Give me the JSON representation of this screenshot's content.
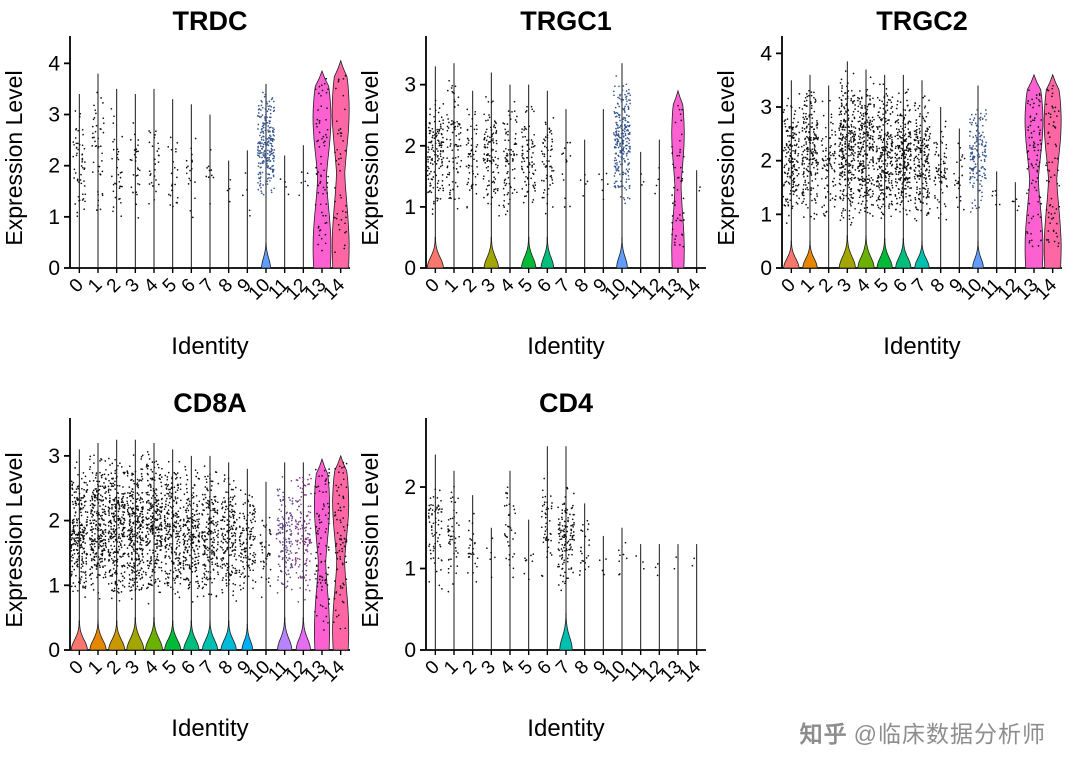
{
  "figure": {
    "categories": [
      "0",
      "1",
      "2",
      "3",
      "4",
      "5",
      "6",
      "7",
      "8",
      "9",
      "10",
      "11",
      "12",
      "13",
      "14"
    ],
    "cluster_colors": [
      "#F8766D",
      "#E58700",
      "#C99800",
      "#A3A500",
      "#6BB100",
      "#00BA38",
      "#00BF7D",
      "#00C0AF",
      "#00BCD8",
      "#00B0F6",
      "#619CFF",
      "#B983FF",
      "#E76BF3",
      "#FD61D1",
      "#FF67A4"
    ],
    "point_color": "#0e0e0e",
    "axis_color": "#000000",
    "cluster_fields": [
      "violin_shape(0=none,1=bottom_bulge,2=full_violin)",
      "violin_height_expr",
      "violin_width_frac",
      "stem_max_expr",
      "points_n",
      "points_min_expr",
      "points_max_expr",
      "tint_points(0/1)"
    ]
  },
  "watermark": {
    "logo": "知乎",
    "handle": "@临床数据分析师"
  },
  "chart_data": [
    {
      "type": "violin",
      "title": "TRDC",
      "xlabel": "Identity",
      "ylabel": "Expression Level",
      "ylim": [
        0,
        4.3
      ],
      "yticks": [
        0,
        1,
        2,
        3,
        4
      ],
      "clusters": [
        [
          0,
          0,
          0,
          3.4,
          55,
          0.8,
          3.4,
          0
        ],
        [
          0,
          0,
          0,
          3.8,
          45,
          0.8,
          3.6,
          0
        ],
        [
          0,
          0,
          0,
          3.5,
          35,
          0.9,
          3.2,
          0
        ],
        [
          0,
          0,
          0,
          3.4,
          30,
          0.9,
          3.2,
          0
        ],
        [
          0,
          0,
          0,
          3.5,
          28,
          0.9,
          3.3,
          0
        ],
        [
          0,
          0,
          0,
          3.3,
          22,
          0.9,
          3.1,
          0
        ],
        [
          0,
          0,
          0,
          3.2,
          18,
          0.9,
          3.0,
          0
        ],
        [
          0,
          0,
          0,
          3.0,
          10,
          1.0,
          2.8,
          0
        ],
        [
          0,
          0,
          0,
          2.1,
          4,
          1.2,
          2.0,
          0
        ],
        [
          0,
          0,
          0,
          2.3,
          5,
          1.0,
          2.2,
          0
        ],
        [
          1,
          0.55,
          0.5,
          3.6,
          240,
          1.2,
          3.5,
          1
        ],
        [
          0,
          0,
          0,
          2.2,
          4,
          1.1,
          2.0,
          0
        ],
        [
          0,
          0,
          0,
          2.4,
          6,
          1.0,
          2.2,
          0
        ],
        [
          2,
          3.85,
          1.0,
          3.85,
          70,
          0.3,
          3.7,
          0
        ],
        [
          2,
          4.05,
          0.95,
          4.05,
          45,
          0.3,
          3.8,
          0
        ]
      ]
    },
    {
      "type": "violin",
      "title": "TRGC1",
      "xlabel": "Identity",
      "ylabel": "Expression Level",
      "ylim": [
        0,
        3.6
      ],
      "yticks": [
        0,
        1,
        2,
        3
      ],
      "clusters": [
        [
          1,
          0.5,
          0.9,
          3.3,
          140,
          0.8,
          2.9,
          0
        ],
        [
          0,
          0,
          0,
          3.35,
          90,
          0.8,
          3.3,
          0
        ],
        [
          0,
          0,
          0,
          2.9,
          55,
          0.8,
          2.7,
          0
        ],
        [
          1,
          0.5,
          0.8,
          3.2,
          110,
          0.8,
          3.0,
          0
        ],
        [
          0,
          0,
          0,
          3.0,
          80,
          0.8,
          2.9,
          0
        ],
        [
          1,
          0.5,
          0.8,
          3.0,
          80,
          0.8,
          2.8,
          0
        ],
        [
          1,
          0.5,
          0.7,
          2.9,
          60,
          0.8,
          2.7,
          0
        ],
        [
          0,
          0,
          0,
          2.6,
          15,
          0.9,
          2.4,
          0
        ],
        [
          0,
          0,
          0,
          2.1,
          5,
          1.0,
          2.0,
          0
        ],
        [
          0,
          0,
          0,
          2.6,
          6,
          1.0,
          2.4,
          0
        ],
        [
          1,
          0.5,
          0.6,
          3.35,
          260,
          1.0,
          3.2,
          1
        ],
        [
          0,
          0,
          0,
          1.9,
          3,
          1.0,
          1.8,
          0
        ],
        [
          0,
          0,
          0,
          2.1,
          4,
          1.0,
          2.0,
          0
        ],
        [
          2,
          2.9,
          0.7,
          2.9,
          50,
          0.3,
          2.7,
          0
        ],
        [
          0,
          0,
          0,
          1.6,
          2,
          1.2,
          1.5,
          0
        ]
      ]
    },
    {
      "type": "violin",
      "title": "TRGC2",
      "xlabel": "Identity",
      "ylabel": "Expression Level",
      "ylim": [
        0,
        4.1
      ],
      "yticks": [
        0,
        1,
        2,
        3,
        4
      ],
      "clusters": [
        [
          1,
          0.5,
          0.85,
          3.5,
          170,
          0.8,
          3.3,
          0
        ],
        [
          1,
          0.5,
          0.8,
          3.6,
          210,
          0.8,
          3.5,
          0
        ],
        [
          0,
          0,
          0,
          3.4,
          90,
          0.8,
          3.2,
          0
        ],
        [
          1,
          0.6,
          0.9,
          3.85,
          300,
          0.8,
          3.7,
          0
        ],
        [
          1,
          0.6,
          0.9,
          3.7,
          280,
          0.8,
          3.6,
          0
        ],
        [
          1,
          0.55,
          0.85,
          3.6,
          250,
          0.8,
          3.5,
          0
        ],
        [
          1,
          0.55,
          0.85,
          3.6,
          250,
          0.8,
          3.4,
          0
        ],
        [
          1,
          0.5,
          0.8,
          3.5,
          210,
          0.8,
          3.3,
          0
        ],
        [
          0,
          0,
          0,
          3.0,
          70,
          0.8,
          2.8,
          0
        ],
        [
          0,
          0,
          0,
          2.6,
          25,
          0.9,
          2.4,
          0
        ],
        [
          1,
          0.5,
          0.6,
          3.4,
          160,
          1.0,
          3.2,
          1
        ],
        [
          0,
          0,
          0,
          1.8,
          6,
          0.9,
          1.6,
          0
        ],
        [
          0,
          0,
          0,
          1.6,
          5,
          0.9,
          1.5,
          0
        ],
        [
          2,
          3.6,
          1.0,
          3.6,
          90,
          0.3,
          3.4,
          0
        ],
        [
          2,
          3.6,
          0.95,
          3.6,
          70,
          0.3,
          3.4,
          0
        ]
      ]
    },
    {
      "type": "violin",
      "title": "CD8A",
      "xlabel": "Identity",
      "ylabel": "Expression Level",
      "ylim": [
        0,
        3.4
      ],
      "yticks": [
        0,
        1,
        2,
        3
      ],
      "clusters": [
        [
          1,
          0.45,
          0.9,
          3.1,
          240,
          0.7,
          3.0,
          0
        ],
        [
          1,
          0.45,
          0.9,
          3.2,
          270,
          0.7,
          3.1,
          0
        ],
        [
          1,
          0.45,
          0.9,
          3.25,
          300,
          0.7,
          3.1,
          0
        ],
        [
          1,
          0.5,
          0.95,
          3.25,
          310,
          0.7,
          3.1,
          0
        ],
        [
          1,
          0.5,
          0.95,
          3.2,
          280,
          0.7,
          3.1,
          0
        ],
        [
          1,
          0.45,
          0.9,
          3.1,
          240,
          0.7,
          3.0,
          0
        ],
        [
          1,
          0.45,
          0.85,
          3.0,
          220,
          0.7,
          2.9,
          0
        ],
        [
          1,
          0.45,
          0.85,
          3.0,
          210,
          0.7,
          2.9,
          0
        ],
        [
          1,
          0.45,
          0.85,
          2.9,
          180,
          0.7,
          2.8,
          0
        ],
        [
          1,
          0.4,
          0.6,
          2.8,
          130,
          0.7,
          2.7,
          0
        ],
        [
          0,
          0,
          0,
          2.6,
          40,
          0.8,
          2.4,
          0
        ],
        [
          1,
          0.5,
          0.8,
          2.9,
          150,
          0.7,
          2.8,
          1
        ],
        [
          1,
          0.5,
          0.8,
          2.9,
          140,
          0.7,
          2.8,
          1
        ],
        [
          2,
          2.95,
          0.85,
          2.95,
          90,
          0.3,
          2.8,
          0
        ],
        [
          2,
          3.0,
          0.9,
          3.0,
          80,
          0.3,
          2.9,
          0
        ]
      ]
    },
    {
      "type": "violin",
      "title": "CD4",
      "xlabel": "Identity",
      "ylabel": "Expression Level",
      "ylim": [
        0,
        2.7
      ],
      "yticks": [
        0,
        1,
        2
      ],
      "clusters": [
        [
          0,
          0,
          0,
          2.4,
          70,
          0.7,
          2.3,
          0
        ],
        [
          0,
          0,
          0,
          2.2,
          50,
          0.7,
          2.1,
          0
        ],
        [
          0,
          0,
          0,
          1.9,
          25,
          0.8,
          1.8,
          0
        ],
        [
          0,
          0,
          0,
          1.5,
          6,
          0.8,
          1.4,
          0
        ],
        [
          0,
          0,
          0,
          2.2,
          35,
          0.8,
          2.1,
          0
        ],
        [
          0,
          0,
          0,
          1.6,
          8,
          0.8,
          1.5,
          0
        ],
        [
          0,
          0,
          0,
          2.5,
          45,
          0.8,
          2.2,
          0
        ],
        [
          1,
          0.45,
          0.7,
          2.5,
          130,
          0.7,
          2.1,
          0
        ],
        [
          0,
          0,
          0,
          1.8,
          25,
          0.8,
          1.7,
          0
        ],
        [
          0,
          0,
          0,
          1.4,
          5,
          0.8,
          1.3,
          0
        ],
        [
          0,
          0,
          0,
          1.5,
          8,
          0.8,
          1.4,
          0
        ],
        [
          0,
          0,
          0,
          1.3,
          3,
          0.9,
          1.25,
          0
        ],
        [
          0,
          0,
          0,
          1.3,
          3,
          0.9,
          1.25,
          0
        ],
        [
          0,
          0,
          0,
          1.3,
          2,
          0.9,
          1.2,
          0
        ],
        [
          0,
          0,
          0,
          1.3,
          2,
          0.9,
          1.2,
          0
        ]
      ]
    }
  ]
}
